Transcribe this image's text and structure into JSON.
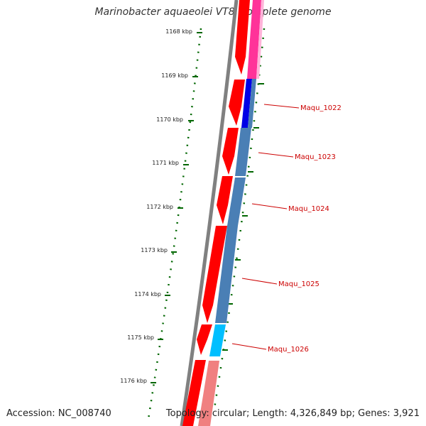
{
  "title": "Marinobacter aquaeolei VT8, complete genome",
  "footer": {
    "accession": "Accession: NC_008740",
    "summary": "Topology: circular; Length: 4,326,849 bp; Genes: 3,921"
  },
  "tick_labels": [
    "1168 kbp",
    "1169 kbp",
    "1170 kbp",
    "1171 kbp",
    "1172 kbp",
    "1173 kbp",
    "1174 kbp",
    "1175 kbp",
    "1176 kbp"
  ],
  "genes": [
    {
      "label": "Maqu_1022"
    },
    {
      "label": "Maqu_1023"
    },
    {
      "label": "Maqu_1024"
    },
    {
      "label": "Maqu_1025"
    },
    {
      "label": "Maqu_1026"
    }
  ],
  "colors": {
    "backbone": "#808080",
    "tick": "#006600",
    "cds_forward": "#ff0000",
    "cds_forward_light": "#f08080",
    "cog_magenta": "#ff3399",
    "cog_blue": "#0000e6",
    "cog_steel": "#4a7fb5",
    "cog_cyan": "#00bfff",
    "gene_label": "#cc0000"
  }
}
